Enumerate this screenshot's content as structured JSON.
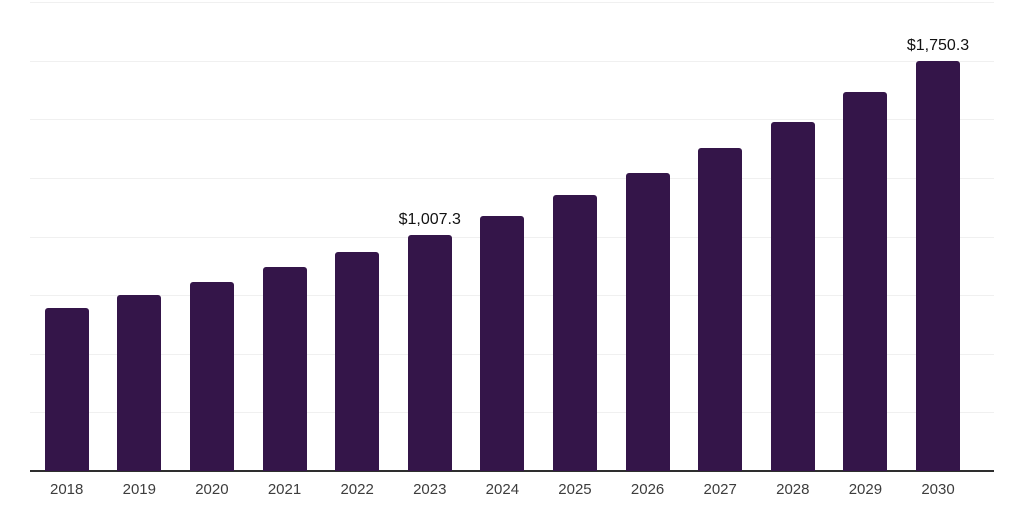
{
  "chart_data": {
    "type": "bar",
    "title": "",
    "xlabel": "",
    "ylabel": "",
    "categories": [
      "2018",
      "2019",
      "2020",
      "2021",
      "2022",
      "2023",
      "2024",
      "2025",
      "2026",
      "2027",
      "2028",
      "2029",
      "2030"
    ],
    "values": [
      694,
      750,
      805,
      869,
      933,
      1007.3,
      1087,
      1175,
      1272,
      1379,
      1490,
      1617,
      1750.3
    ],
    "data_labels": [
      "",
      "",
      "",
      "",
      "",
      "$1,007.3",
      "",
      "",
      "",
      "",
      "",
      "",
      "$1,750.3"
    ],
    "ylim": [
      0,
      2000
    ],
    "gridline_interval": 250,
    "grid": true,
    "legend": false,
    "y_axis_labels_visible": false,
    "colors": {
      "bar": "#341549",
      "axis": "#2e2e2e",
      "gridline": "#f0f0f0",
      "data_label": "#121212",
      "tick_label": "#3d3d3d",
      "background": "#ffffff"
    }
  }
}
